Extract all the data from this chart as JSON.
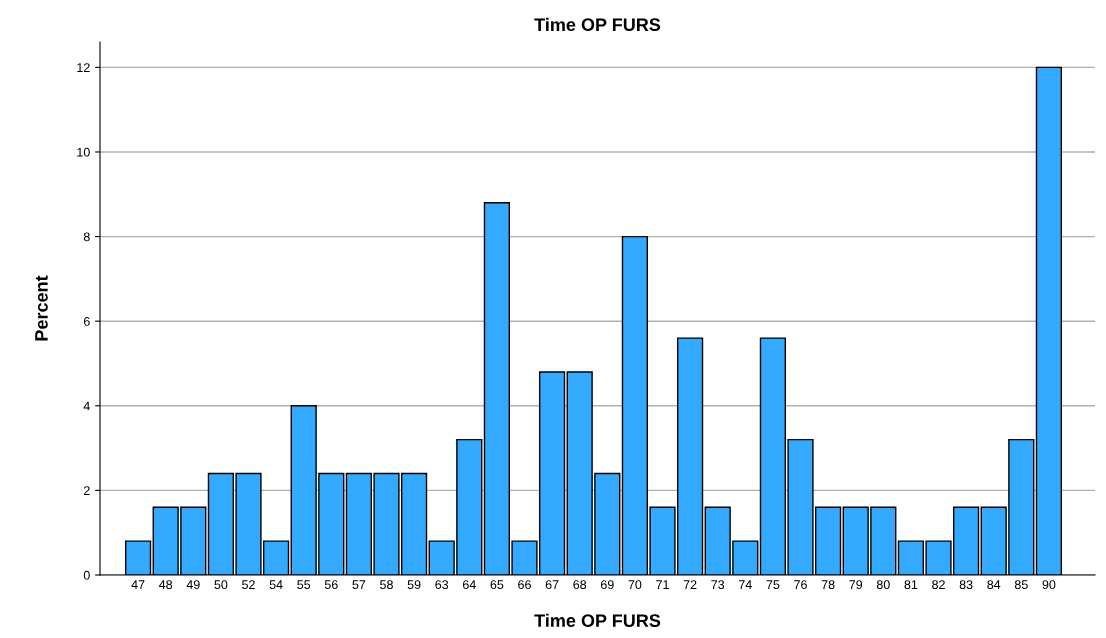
{
  "chart_data": {
    "type": "bar",
    "title": "Time OP FURS",
    "xlabel": "Time OP FURS",
    "ylabel": "Percent",
    "categories": [
      "47",
      "48",
      "49",
      "50",
      "52",
      "54",
      "55",
      "56",
      "57",
      "58",
      "59",
      "63",
      "64",
      "65",
      "66",
      "67",
      "68",
      "69",
      "70",
      "71",
      "72",
      "73",
      "74",
      "75",
      "76",
      "78",
      "79",
      "80",
      "81",
      "82",
      "83",
      "84",
      "85",
      "90"
    ],
    "values": [
      0.8,
      1.6,
      1.6,
      2.4,
      2.4,
      0.8,
      4.0,
      2.4,
      2.4,
      2.4,
      2.4,
      0.8,
      3.2,
      8.8,
      0.8,
      4.8,
      4.8,
      2.4,
      8.0,
      1.6,
      5.6,
      1.6,
      0.8,
      5.6,
      3.2,
      1.6,
      1.6,
      1.6,
      0.8,
      0.8,
      1.6,
      1.6,
      3.2,
      12.0
    ],
    "color": "#33aaff",
    "ylim": [
      0,
      12.6
    ],
    "yticks": [
      0,
      2,
      4,
      6,
      8,
      10,
      12
    ],
    "grid": "y",
    "legend": false
  }
}
